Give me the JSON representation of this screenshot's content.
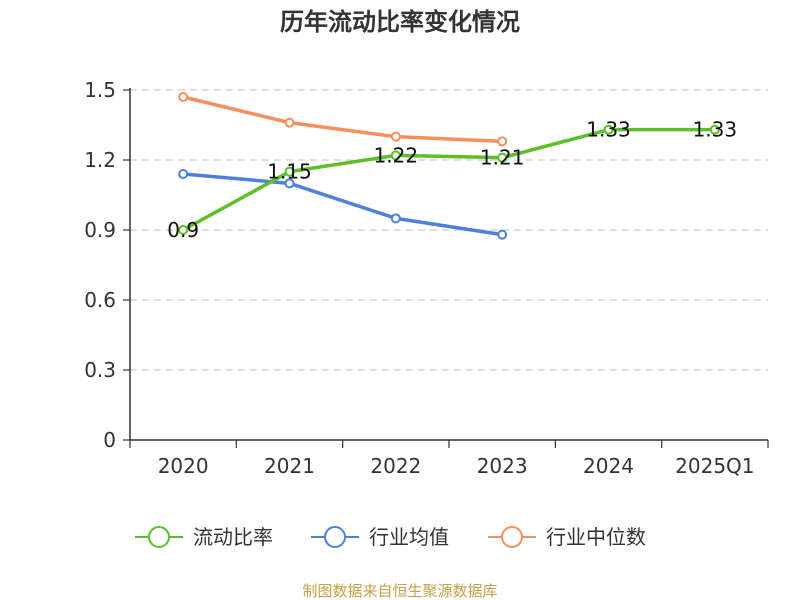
{
  "chart_data": {
    "type": "line",
    "title": "历年流动比率变化情况",
    "categories": [
      "2020",
      "2021",
      "2022",
      "2023",
      "2024",
      "2025Q1"
    ],
    "y_ticks": [
      "0",
      "0.3",
      "0.6",
      "0.9",
      "1.2",
      "1.5"
    ],
    "ylim": [
      0,
      1.5
    ],
    "grid": true,
    "legend_position": "bottom",
    "series": [
      {
        "name": "流动比率",
        "color": "#5cbf2a",
        "values": [
          0.9,
          1.15,
          1.22,
          1.21,
          1.33,
          1.33
        ],
        "labels": [
          "0.9",
          "1.15",
          "1.22",
          "1.21",
          "1.33",
          "1.33"
        ]
      },
      {
        "name": "行业均值",
        "color": "#4f7fdc",
        "values": [
          1.14,
          1.1,
          0.95,
          0.88,
          null,
          null
        ]
      },
      {
        "name": "行业中位数",
        "color": "#f58f5c",
        "values": [
          1.47,
          1.36,
          1.3,
          1.28,
          null,
          null
        ]
      }
    ]
  },
  "footer": {
    "source": "制图数据来自恒生聚源数据库"
  }
}
